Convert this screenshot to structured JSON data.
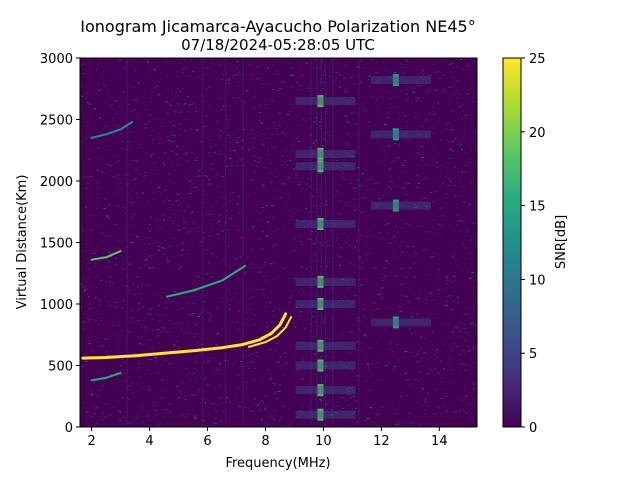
{
  "chart_data": {
    "type": "heatmap",
    "title": "Ionogram Jicamarca-Ayacucho Polarization NE45°",
    "subtitle": "07/18/2024-05:28:05 UTC",
    "xlabel": "Frequency(MHz)",
    "ylabel": "Virtual Distance(Km)",
    "xlim": [
      1.6,
      15.3
    ],
    "ylim": [
      0,
      3000
    ],
    "x_ticks": [
      "2",
      "4",
      "6",
      "8",
      "10",
      "12",
      "14"
    ],
    "y_ticks": [
      "0",
      "500",
      "1000",
      "1500",
      "2000",
      "2500",
      "3000"
    ],
    "colorbar": {
      "label": "SNR[dB]",
      "min": 0,
      "max": 25,
      "ticks": [
        "0",
        "5",
        "10",
        "15",
        "20",
        "25"
      ],
      "colormap": "viridis"
    },
    "grid": false,
    "traces": [
      {
        "x": [
          1.7,
          2.5,
          3.5,
          4.5,
          5.5,
          6.5,
          7.2,
          7.8,
          8.2,
          8.5,
          8.7
        ],
        "y": [
          560,
          565,
          580,
          600,
          620,
          645,
          670,
          710,
          760,
          830,
          920
        ],
        "snr": 25
      },
      {
        "x": [
          4.6,
          5.5,
          6.5,
          7.3
        ],
        "y": [
          1060,
          1110,
          1190,
          1310
        ],
        "snr": 16
      },
      {
        "x": [
          2.0,
          2.5,
          3.0
        ],
        "y": [
          1360,
          1380,
          1430
        ],
        "snr": 20
      },
      {
        "x": [
          2.0,
          2.5,
          3.0
        ],
        "y": [
          380,
          400,
          440
        ],
        "snr": 16
      },
      {
        "x": [
          2.0,
          2.5,
          3.0,
          3.4
        ],
        "y": [
          2350,
          2380,
          2420,
          2480
        ],
        "snr": 14
      }
    ],
    "bands": [
      {
        "x": 9.9,
        "y": [
          1180,
          2220,
          300,
          660,
          2120,
          1650,
          2650,
          100,
          1000,
          500
        ],
        "snr": 20
      },
      {
        "x": 12.5,
        "y": [
          1800,
          2380,
          2820,
          850
        ],
        "snr": 15
      }
    ]
  }
}
